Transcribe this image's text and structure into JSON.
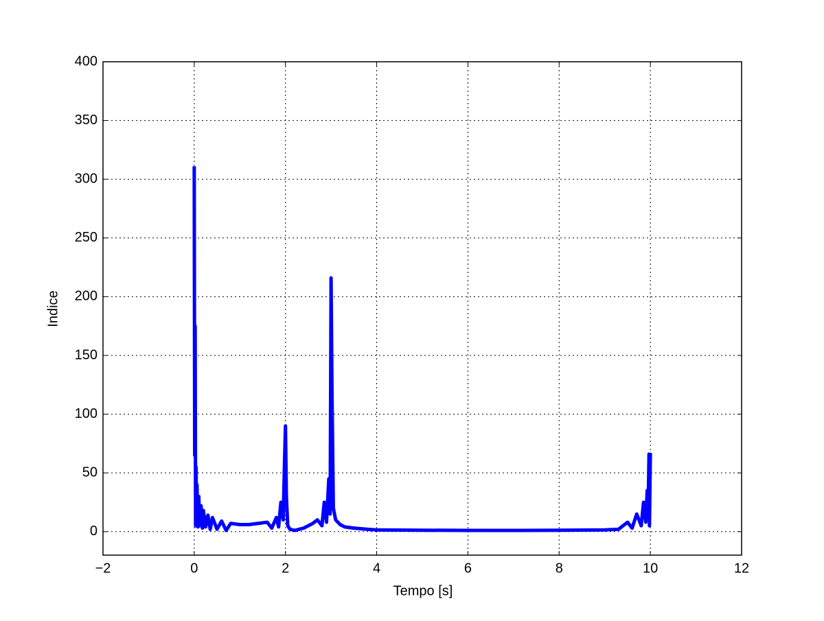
{
  "chart_data": {
    "type": "line",
    "xlabel": "Tempo [s]",
    "ylabel": "Indice",
    "x": [
      0,
      0.01,
      0.02,
      0.03,
      0.04,
      0.05,
      0.06,
      0.08,
      0.1,
      0.12,
      0.15,
      0.18,
      0.2,
      0.25,
      0.3,
      0.35,
      0.4,
      0.5,
      0.6,
      0.7,
      0.8,
      1.0,
      1.2,
      1.4,
      1.6,
      1.7,
      1.8,
      1.85,
      1.9,
      1.95,
      1.98,
      2.0,
      2.02,
      2.05,
      2.1,
      2.2,
      2.4,
      2.6,
      2.7,
      2.8,
      2.85,
      2.9,
      2.95,
      2.98,
      3.0,
      3.02,
      3.05,
      3.1,
      3.2,
      3.3,
      3.5,
      3.8,
      4.0,
      5.0,
      6.0,
      7.0,
      8.0,
      9.0,
      9.3,
      9.5,
      9.6,
      9.7,
      9.8,
      9.85,
      9.9,
      9.93,
      9.95,
      9.97,
      9.98,
      10.0
    ],
    "series": [
      {
        "color": "#0000ff",
        "values": [
          311,
          65,
          175,
          5,
          55,
          8,
          40,
          4,
          30,
          5,
          22,
          3,
          18,
          4,
          14,
          2,
          12,
          2,
          9,
          1,
          7,
          6,
          6,
          7,
          8,
          3,
          12,
          4,
          25,
          10,
          60,
          90,
          30,
          5,
          2,
          1,
          3,
          7,
          10,
          5,
          25,
          8,
          45,
          15,
          216,
          120,
          20,
          10,
          6,
          4,
          3,
          2,
          1.5,
          1.2,
          1,
          1,
          1.2,
          1.5,
          2,
          8,
          3,
          15,
          5,
          25,
          8,
          35,
          15,
          66,
          5,
          67
        ]
      }
    ],
    "xlim": [
      -2,
      12
    ],
    "xticks": [
      {
        "value": -2,
        "label": "−2"
      },
      0,
      2,
      4,
      6,
      8,
      10,
      12
    ],
    "ylim": [
      -20,
      400
    ],
    "yticks": [
      0,
      50,
      100,
      150,
      200,
      250,
      300,
      350,
      400
    ],
    "grid": true
  }
}
